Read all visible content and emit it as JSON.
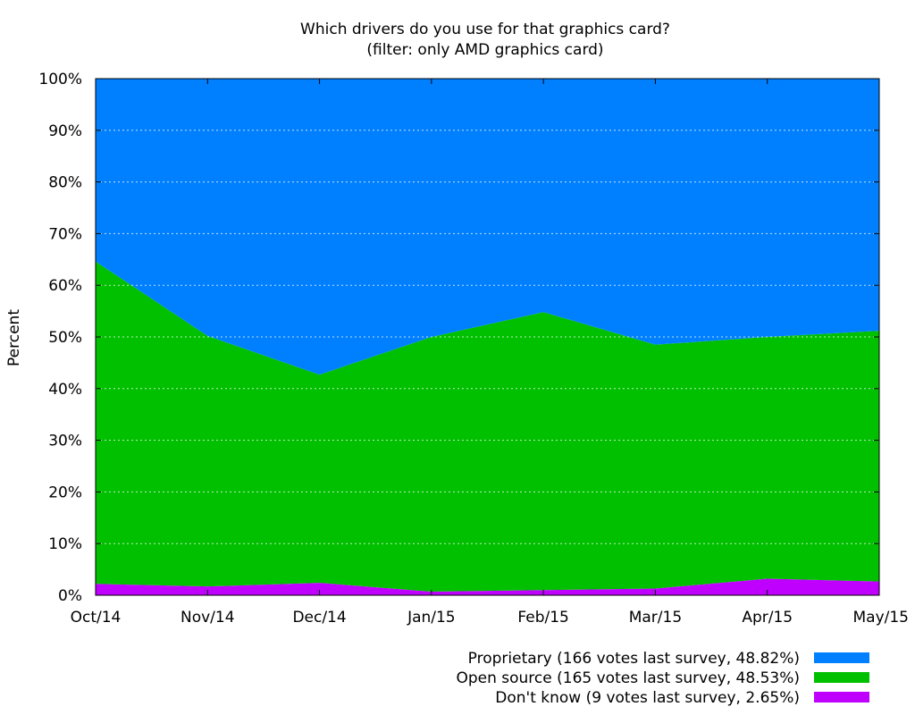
{
  "chart_data": {
    "type": "area",
    "stacked": true,
    "title": "Which drivers do you use for that graphics card?",
    "subtitle": "(filter: only AMD graphics card)",
    "xlabel": "",
    "ylabel": "Percent",
    "categories": [
      "Oct/14",
      "Nov/14",
      "Dec/14",
      "Jan/15",
      "Feb/15",
      "Mar/15",
      "Apr/15",
      "May/15"
    ],
    "ylim": [
      0,
      100
    ],
    "yticks": [
      "0%",
      "10%",
      "20%",
      "30%",
      "40%",
      "50%",
      "60%",
      "70%",
      "80%",
      "90%",
      "100%"
    ],
    "grid": true,
    "legend_position": "bottom-right",
    "series": [
      {
        "name": "Don't know",
        "label": "Don't know (9 votes last survey, 2.65%)",
        "color": "#c000ff",
        "values": [
          2.2,
          1.7,
          2.4,
          0.7,
          1.0,
          1.3,
          3.2,
          2.65
        ]
      },
      {
        "name": "Open source",
        "label": "Open source (165 votes last survey, 48.53%)",
        "color": "#00c000",
        "values": [
          62.4,
          48.5,
          40.3,
          49.3,
          53.8,
          47.2,
          46.8,
          48.53
        ]
      },
      {
        "name": "Proprietary",
        "label": "Proprietary (166 votes last survey, 48.82%)",
        "color": "#0080ff",
        "values": [
          35.4,
          49.8,
          57.3,
          50.0,
          45.2,
          51.5,
          50.0,
          48.82
        ]
      }
    ]
  }
}
